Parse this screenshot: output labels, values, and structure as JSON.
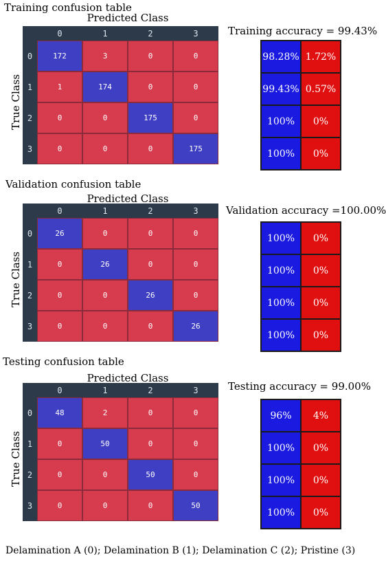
{
  "colors": {
    "matrix_background": "#2c3a4a",
    "correct_cell": "#3f3fc4",
    "error_cell": "#d63b4e",
    "accuracy_correct": "#1a1ae0",
    "accuracy_error": "#e01010"
  },
  "common": {
    "predicted_label": "Predicted Class",
    "true_label": "True Class",
    "class_ticks": [
      "0",
      "1",
      "2",
      "3"
    ]
  },
  "footer": "Delamination A (0); Delamination B (1); Delamination C (2); Pristine (3)",
  "chart_data": [
    {
      "type": "heatmap",
      "title": "Training confusion table",
      "xlabel": "Predicted Class",
      "ylabel": "True Class",
      "categories": [
        "0",
        "1",
        "2",
        "3"
      ],
      "matrix": [
        [
          172,
          3,
          0,
          0
        ],
        [
          1,
          174,
          0,
          0
        ],
        [
          0,
          0,
          175,
          0
        ],
        [
          0,
          0,
          0,
          175
        ]
      ],
      "accuracy_label": "Training accuracy = 99.43%",
      "per_class": [
        [
          "98.28%",
          "1.72%"
        ],
        [
          "99.43%",
          "0.57%"
        ],
        [
          "100%",
          "0%"
        ],
        [
          "100%",
          "0%"
        ]
      ]
    },
    {
      "type": "heatmap",
      "title": "Validation confusion table",
      "xlabel": "Predicted Class",
      "ylabel": "True Class",
      "categories": [
        "0",
        "1",
        "2",
        "3"
      ],
      "matrix": [
        [
          26,
          0,
          0,
          0
        ],
        [
          0,
          26,
          0,
          0
        ],
        [
          0,
          0,
          26,
          0
        ],
        [
          0,
          0,
          0,
          26
        ]
      ],
      "accuracy_label": "Validation accuracy =100.00%",
      "per_class": [
        [
          "100%",
          "0%"
        ],
        [
          "100%",
          "0%"
        ],
        [
          "100%",
          "0%"
        ],
        [
          "100%",
          "0%"
        ]
      ]
    },
    {
      "type": "heatmap",
      "title": "Testing confusion table",
      "xlabel": "Predicted Class",
      "ylabel": "True Class",
      "categories": [
        "0",
        "1",
        "2",
        "3"
      ],
      "matrix": [
        [
          48,
          2,
          0,
          0
        ],
        [
          0,
          50,
          0,
          0
        ],
        [
          0,
          0,
          50,
          0
        ],
        [
          0,
          0,
          0,
          50
        ]
      ],
      "accuracy_label": "Testing accuracy = 99.00%",
      "per_class": [
        [
          "96%",
          "4%"
        ],
        [
          "100%",
          "0%"
        ],
        [
          "100%",
          "0%"
        ],
        [
          "100%",
          "0%"
        ]
      ]
    }
  ]
}
